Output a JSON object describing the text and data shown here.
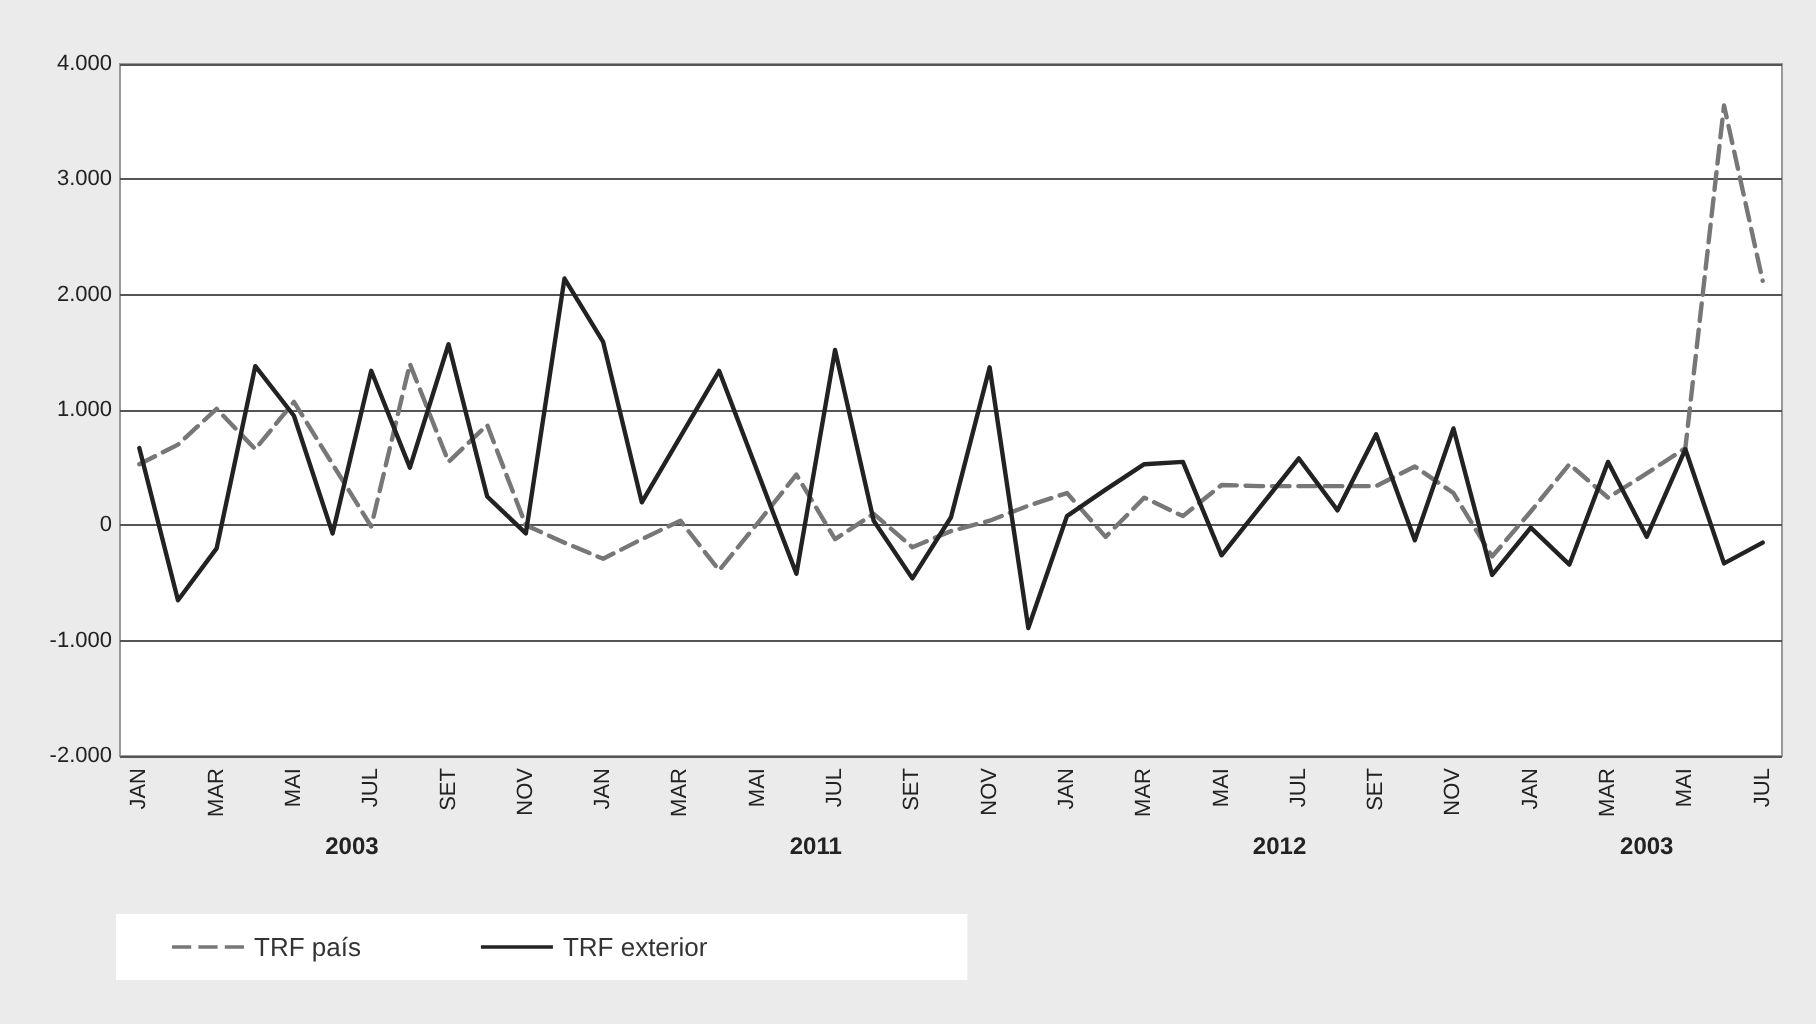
{
  "chart_data": {
    "type": "line",
    "categories": [
      "JAN",
      null,
      "MAR",
      null,
      "MAI",
      null,
      "JUL",
      null,
      "SET",
      null,
      "NOV",
      null,
      "JAN",
      null,
      "MAR",
      null,
      "MAI",
      null,
      "JUL",
      null,
      "SET",
      null,
      "NOV",
      null,
      "JAN",
      null,
      "MAR",
      null,
      "MAI",
      null,
      "JUL",
      null,
      "SET",
      null,
      "NOV",
      null,
      "JAN",
      null,
      "MAR",
      null,
      "MAI",
      null,
      "JUL"
    ],
    "series": [
      {
        "name": "TRF país",
        "color": "#777777",
        "line_style": "dashed",
        "values": [
          530,
          700,
          1010,
          660,
          1070,
          530,
          -10,
          1400,
          550,
          870,
          0,
          -150,
          -290,
          -120,
          40,
          -390,
          20,
          440,
          -120,
          100,
          -190,
          -50,
          40,
          170,
          280,
          -100,
          240,
          80,
          350,
          340,
          340,
          340,
          340,
          510,
          280,
          -270,
          120,
          530,
          240,
          450,
          670,
          3640,
          2120
        ]
      },
      {
        "name": "TRF exterior",
        "color": "#222222",
        "line_style": "solid",
        "values": [
          670,
          -650,
          -200,
          1380,
          950,
          -70,
          1340,
          500,
          1570,
          250,
          -70,
          2140,
          1590,
          200,
          770,
          1340,
          460,
          -420,
          1520,
          40,
          -460,
          70,
          1370,
          -890,
          80,
          310,
          530,
          550,
          -260,
          160,
          580,
          130,
          790,
          -130,
          840,
          -430,
          -20,
          -340,
          550,
          -100,
          660,
          -330,
          -150
        ]
      }
    ],
    "ylim": [
      -2000,
      4000
    ],
    "yticks": [
      {
        "value": -2000,
        "label": "-2.000"
      },
      {
        "value": -1000,
        "label": "-1.000"
      },
      0,
      {
        "value": 1000,
        "label": "1.000"
      },
      {
        "value": 2000,
        "label": "2.000"
      },
      {
        "value": 3000,
        "label": "3.000"
      },
      {
        "value": 4000,
        "label": "4.000"
      }
    ],
    "grid": "y",
    "legend": "bottom left",
    "marker": "none",
    "annotations": [
      "2003",
      "2011",
      "2012",
      "2003"
    ]
  }
}
